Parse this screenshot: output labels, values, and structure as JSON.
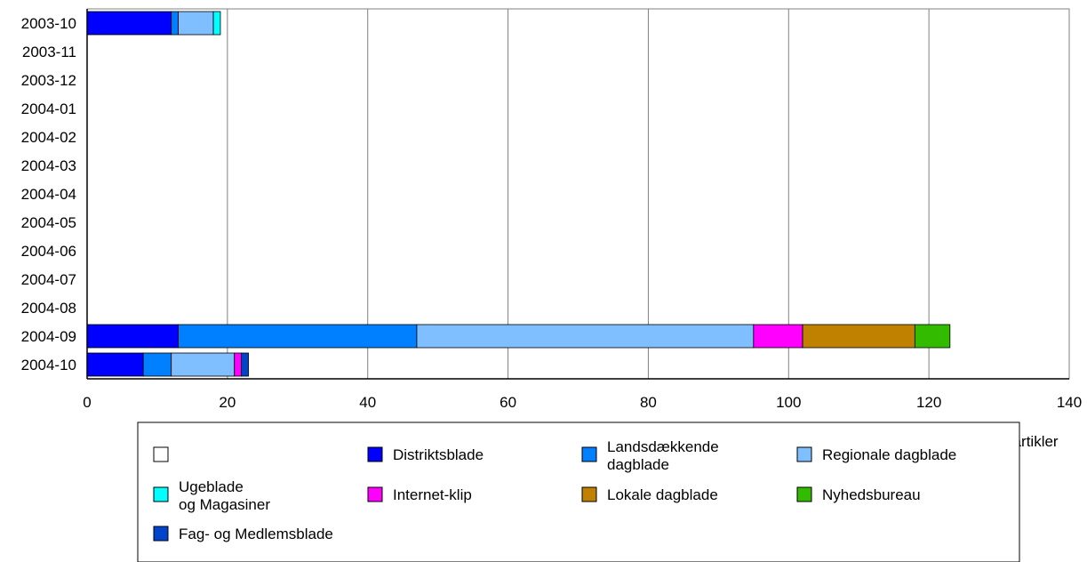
{
  "chart_data": {
    "type": "bar",
    "orientation": "horizontal",
    "stacked": true,
    "categories": [
      "2003-10",
      "2003-11",
      "2003-12",
      "2004-01",
      "2004-02",
      "2004-03",
      "2004-04",
      "2004-05",
      "2004-06",
      "2004-07",
      "2004-08",
      "2004-09",
      "2004-10"
    ],
    "xlabel": "antal artikler",
    "xlim": [
      0,
      140
    ],
    "xticks": [
      0,
      20,
      40,
      60,
      80,
      100,
      120,
      140
    ],
    "grid": "vertical",
    "legend_position": "bottom",
    "series": [
      {
        "name": "",
        "color": "#ffffff",
        "values": [
          0,
          0,
          0,
          0,
          0,
          0,
          0,
          0,
          0,
          0,
          0,
          0,
          0
        ]
      },
      {
        "name": "Distriktsblade",
        "color": "#0000ff",
        "values": [
          12,
          0,
          0,
          0,
          0,
          0,
          0,
          0,
          0,
          0,
          0,
          13,
          8
        ]
      },
      {
        "name": "Landsdækkende dagblade",
        "color": "#0080ff",
        "values": [
          1,
          0,
          0,
          0,
          0,
          0,
          0,
          0,
          0,
          0,
          0,
          34,
          4
        ]
      },
      {
        "name": "Regionale dagblade",
        "color": "#80bfff",
        "values": [
          5,
          0,
          0,
          0,
          0,
          0,
          0,
          0,
          0,
          0,
          0,
          48,
          9
        ]
      },
      {
        "name": "Ugeblade og Magasiner",
        "color": "#00ffff",
        "values": [
          1,
          0,
          0,
          0,
          0,
          0,
          0,
          0,
          0,
          0,
          0,
          0,
          0
        ]
      },
      {
        "name": "Internet-klip",
        "color": "#ff00ff",
        "values": [
          0,
          0,
          0,
          0,
          0,
          0,
          0,
          0,
          0,
          0,
          0,
          7,
          1
        ]
      },
      {
        "name": "Lokale dagblade",
        "color": "#c08000",
        "values": [
          0,
          0,
          0,
          0,
          0,
          0,
          0,
          0,
          0,
          0,
          0,
          16,
          0
        ]
      },
      {
        "name": "Nyhedsbureau",
        "color": "#33bb00",
        "values": [
          0,
          0,
          0,
          0,
          0,
          0,
          0,
          0,
          0,
          0,
          0,
          5,
          0
        ]
      },
      {
        "name": "Fag- og Medlemsblade",
        "color": "#0044cc",
        "values": [
          0,
          0,
          0,
          0,
          0,
          0,
          0,
          0,
          0,
          0,
          0,
          0,
          1
        ]
      }
    ]
  }
}
